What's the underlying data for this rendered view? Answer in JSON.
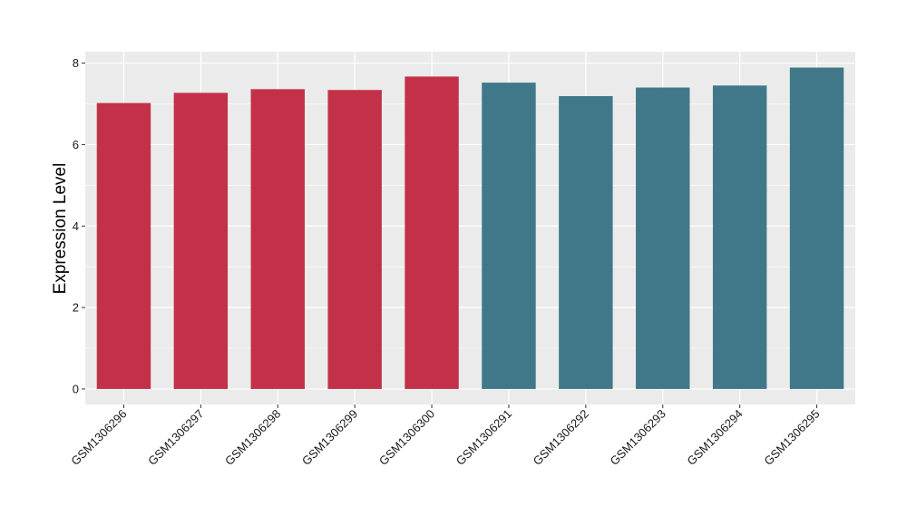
{
  "chart_data": {
    "type": "bar",
    "title": "",
    "xlabel": "",
    "ylabel": "Expression Level",
    "categories": [
      "GSM1306296",
      "GSM1306297",
      "GSM1306298",
      "GSM1306299",
      "GSM1306300",
      "GSM1306291",
      "GSM1306292",
      "GSM1306293",
      "GSM1306294",
      "GSM1306295"
    ],
    "values": [
      7.02,
      7.27,
      7.36,
      7.34,
      7.67,
      7.52,
      7.19,
      7.4,
      7.45,
      7.89
    ],
    "group_of_bar": [
      0,
      0,
      0,
      0,
      0,
      1,
      1,
      1,
      1,
      1
    ],
    "group_colors": [
      "#C33148",
      "#417889"
    ],
    "ylim": [
      -0.38,
      8.28
    ],
    "yticks": [
      0,
      2,
      4,
      6,
      8
    ],
    "grid": true,
    "legend": "none",
    "panel_background": "#EBEBEB",
    "grid_color": "#FFFFFF"
  }
}
